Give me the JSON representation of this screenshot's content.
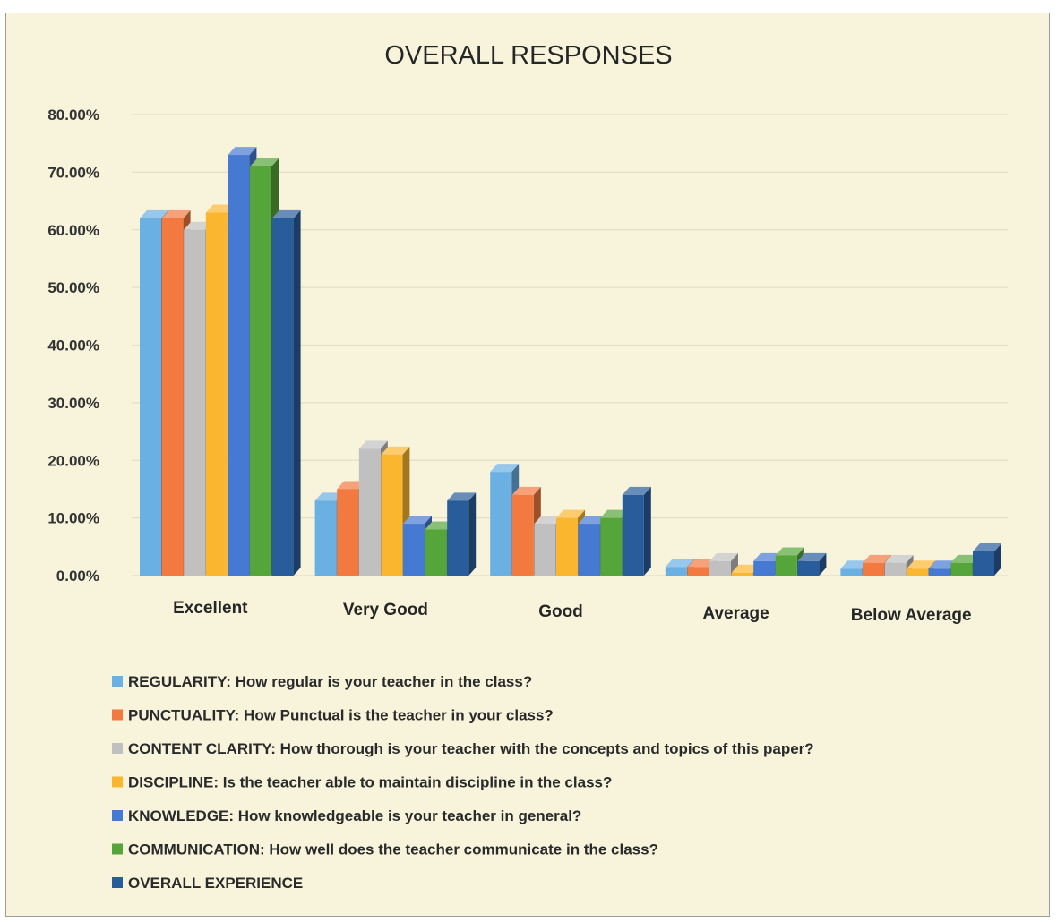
{
  "chart_data": {
    "type": "bar",
    "title": "OVERALL RESPONSES",
    "xlabel": "",
    "ylabel": "",
    "ylim": [
      0,
      0.8
    ],
    "yticks": [
      0,
      0.1,
      0.2,
      0.3,
      0.4,
      0.5,
      0.6,
      0.7,
      0.8
    ],
    "ytick_labels": [
      "0.00%",
      "10.00%",
      "20.00%",
      "30.00%",
      "40.00%",
      "50.00%",
      "60.00%",
      "70.00%",
      "80.00%"
    ],
    "grid": true,
    "legend_position": "bottom",
    "categories": [
      "Excellent",
      "Very Good",
      "Good",
      "Average",
      "Below Average"
    ],
    "series": [
      {
        "name": "REGULARITY: How regular is your teacher in the class?",
        "color": "#6ab0e2",
        "values": [
          0.62,
          0.13,
          0.18,
          0.015,
          0.012
        ]
      },
      {
        "name": "PUNCTUALITY: How Punctual is the teacher in your class?",
        "color": "#f2793f",
        "values": [
          0.62,
          0.15,
          0.14,
          0.015,
          0.022
        ]
      },
      {
        "name": "CONTENT CLARITY: How thorough is your teacher with the concepts and topics of this paper?",
        "color": "#c0c0c0",
        "values": [
          0.6,
          0.22,
          0.09,
          0.025,
          0.022
        ]
      },
      {
        "name": "DISCIPLINE: Is the teacher able to maintain discipline in the class?",
        "color": "#fbb630",
        "values": [
          0.63,
          0.21,
          0.1,
          0.005,
          0.012
        ]
      },
      {
        "name": "KNOWLEDGE: How knowledgeable is your teacher in general?",
        "color": "#4679d2",
        "values": [
          0.73,
          0.09,
          0.09,
          0.025,
          0.012
        ]
      },
      {
        "name": "COMMUNICATION: How well does the teacher communicate in the class?",
        "color": "#56a53a",
        "values": [
          0.71,
          0.08,
          0.1,
          0.035,
          0.022
        ]
      },
      {
        "name": "OVERALL EXPERIENCE",
        "color": "#295c9b",
        "values": [
          0.62,
          0.13,
          0.14,
          0.025,
          0.042
        ]
      }
    ]
  }
}
